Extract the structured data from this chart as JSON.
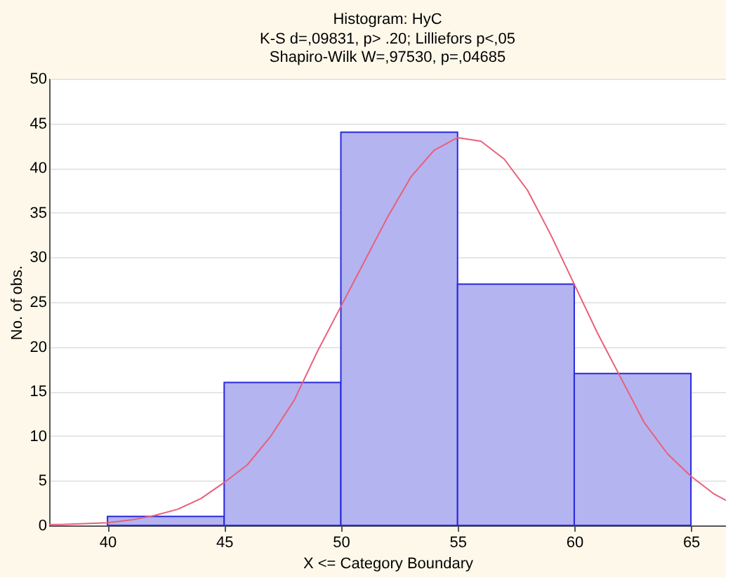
{
  "chart_data": {
    "type": "histogram",
    "title": "Histogram: HyC",
    "subtitle": [
      "K-S d=,09831, p> .20; Lilliefors p<,05",
      "Shapiro-Wilk W=,97530, p=,04685"
    ],
    "xlabel": "X <= Category Boundary",
    "ylabel": "No. of obs.",
    "bins": [
      40,
      45,
      50,
      55,
      60,
      65
    ],
    "values": [
      1,
      16,
      44,
      27,
      17
    ],
    "color": "#b4b4f0",
    "series": [
      {
        "type": "line",
        "color": "#e8607a",
        "x": [
          37.5,
          38,
          40,
          41,
          42,
          43,
          44,
          45,
          46,
          47,
          48,
          49,
          50,
          51,
          52,
          53,
          54,
          55,
          56,
          57,
          58,
          59,
          60,
          61,
          62,
          63,
          64,
          65,
          66,
          66.5
        ],
        "values": [
          0.1,
          0.1,
          0.3,
          0.6,
          1.1,
          1.8,
          3,
          4.8,
          6.8,
          10,
          14,
          19.5,
          24.5,
          29.5,
          34.5,
          39,
          42,
          43.4,
          43,
          41,
          37.5,
          32.5,
          27,
          21.5,
          16.5,
          11.5,
          8,
          5.5,
          3.5,
          2.8
        ]
      }
    ],
    "xlim": [
      37.5,
      66.5
    ],
    "xticks": [
      40,
      45,
      50,
      55,
      60,
      65
    ],
    "ylim": [
      0,
      50
    ],
    "yticks": [
      0,
      5,
      10,
      15,
      20,
      25,
      30,
      35,
      40,
      45,
      50
    ],
    "grid": "y"
  }
}
